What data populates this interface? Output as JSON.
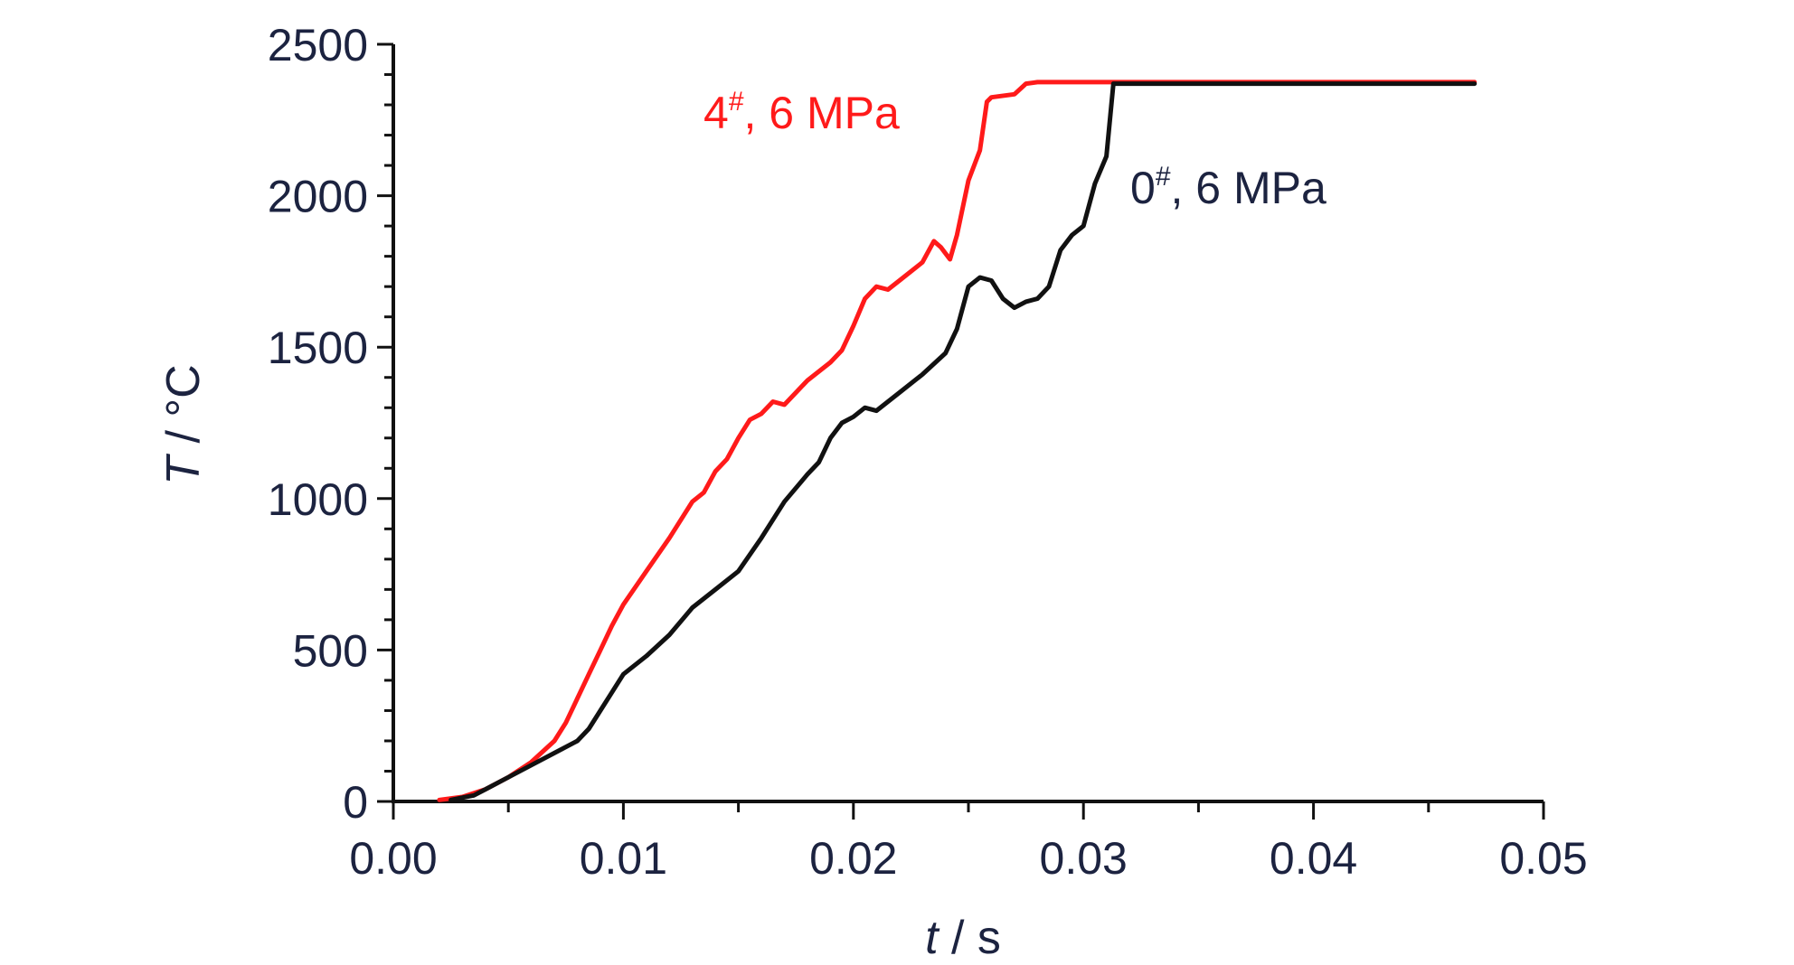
{
  "chart_data": {
    "type": "line",
    "xlabel": {
      "var": "t",
      "unit": " / s"
    },
    "ylabel": {
      "var": "T",
      "unit": " / °C"
    },
    "xlim": [
      0,
      0.05
    ],
    "ylim": [
      0,
      2500
    ],
    "x_ticks": [
      "0.00",
      "0.01",
      "0.02",
      "0.03",
      "0.04",
      "0.05"
    ],
    "y_ticks": [
      "0",
      "500",
      "1000",
      "1500",
      "2000",
      "2500"
    ],
    "grid": false,
    "series": [
      {
        "name_main": "4",
        "name_sup": "#",
        "name_rest": ", 6 MPa",
        "color": "#ff1a1a",
        "points": [
          [
            0.002,
            5
          ],
          [
            0.003,
            15
          ],
          [
            0.004,
            40
          ],
          [
            0.005,
            80
          ],
          [
            0.006,
            130
          ],
          [
            0.007,
            200
          ],
          [
            0.0075,
            260
          ],
          [
            0.008,
            340
          ],
          [
            0.0085,
            420
          ],
          [
            0.009,
            500
          ],
          [
            0.0095,
            580
          ],
          [
            0.01,
            650
          ],
          [
            0.011,
            760
          ],
          [
            0.012,
            870
          ],
          [
            0.013,
            990
          ],
          [
            0.0135,
            1020
          ],
          [
            0.014,
            1090
          ],
          [
            0.0145,
            1130
          ],
          [
            0.015,
            1200
          ],
          [
            0.0155,
            1260
          ],
          [
            0.016,
            1280
          ],
          [
            0.0165,
            1320
          ],
          [
            0.017,
            1310
          ],
          [
            0.0175,
            1350
          ],
          [
            0.018,
            1390
          ],
          [
            0.019,
            1450
          ],
          [
            0.0195,
            1490
          ],
          [
            0.02,
            1570
          ],
          [
            0.0205,
            1660
          ],
          [
            0.021,
            1700
          ],
          [
            0.0215,
            1690
          ],
          [
            0.022,
            1720
          ],
          [
            0.023,
            1780
          ],
          [
            0.0235,
            1850
          ],
          [
            0.0238,
            1830
          ],
          [
            0.0242,
            1790
          ],
          [
            0.0245,
            1870
          ],
          [
            0.025,
            2050
          ],
          [
            0.0253,
            2110
          ],
          [
            0.0255,
            2150
          ],
          [
            0.0258,
            2310
          ],
          [
            0.026,
            2325
          ],
          [
            0.027,
            2335
          ],
          [
            0.0275,
            2370
          ],
          [
            0.028,
            2375
          ],
          [
            0.03,
            2375
          ],
          [
            0.035,
            2375
          ],
          [
            0.04,
            2375
          ],
          [
            0.045,
            2375
          ],
          [
            0.047,
            2375
          ]
        ]
      },
      {
        "name_main": "0",
        "name_sup": "#",
        "name_rest": ", 6 MPa",
        "color": "#111111",
        "points": [
          [
            0.0025,
            5
          ],
          [
            0.0035,
            20
          ],
          [
            0.004,
            40
          ],
          [
            0.005,
            80
          ],
          [
            0.006,
            120
          ],
          [
            0.007,
            160
          ],
          [
            0.008,
            200
          ],
          [
            0.0085,
            240
          ],
          [
            0.009,
            300
          ],
          [
            0.0095,
            360
          ],
          [
            0.01,
            420
          ],
          [
            0.011,
            480
          ],
          [
            0.012,
            550
          ],
          [
            0.013,
            640
          ],
          [
            0.014,
            700
          ],
          [
            0.015,
            760
          ],
          [
            0.016,
            870
          ],
          [
            0.017,
            990
          ],
          [
            0.018,
            1080
          ],
          [
            0.0185,
            1120
          ],
          [
            0.019,
            1200
          ],
          [
            0.0195,
            1250
          ],
          [
            0.02,
            1270
          ],
          [
            0.0205,
            1300
          ],
          [
            0.021,
            1290
          ],
          [
            0.022,
            1350
          ],
          [
            0.023,
            1410
          ],
          [
            0.024,
            1480
          ],
          [
            0.0245,
            1560
          ],
          [
            0.025,
            1700
          ],
          [
            0.0255,
            1730
          ],
          [
            0.026,
            1720
          ],
          [
            0.0265,
            1660
          ],
          [
            0.027,
            1630
          ],
          [
            0.0275,
            1650
          ],
          [
            0.028,
            1660
          ],
          [
            0.0285,
            1700
          ],
          [
            0.029,
            1820
          ],
          [
            0.0295,
            1870
          ],
          [
            0.03,
            1900
          ],
          [
            0.0305,
            2040
          ],
          [
            0.031,
            2130
          ],
          [
            0.0313,
            2370
          ],
          [
            0.035,
            2370
          ],
          [
            0.04,
            2370
          ],
          [
            0.045,
            2370
          ],
          [
            0.047,
            2370
          ]
        ]
      }
    ]
  }
}
